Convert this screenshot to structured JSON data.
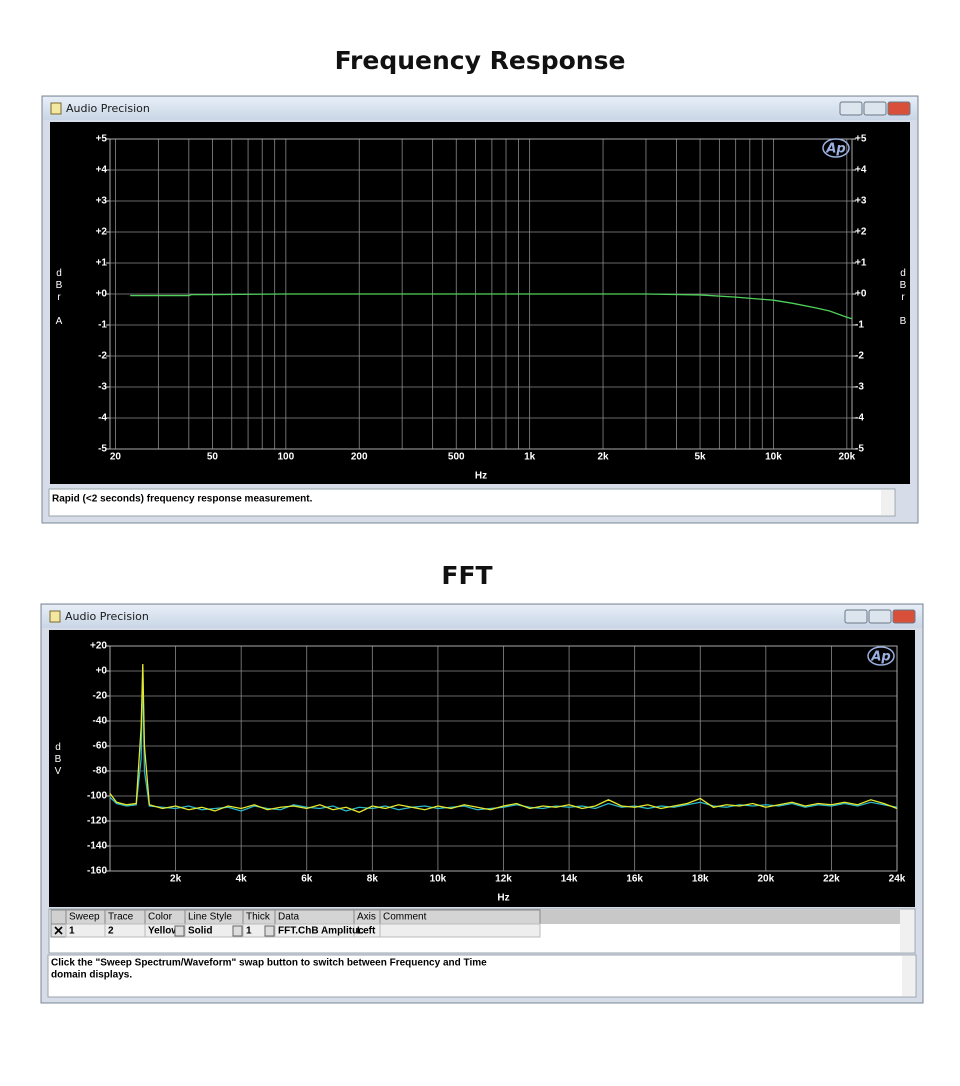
{
  "headings": [
    "Frequency Response",
    "FFT"
  ],
  "windows": [
    {
      "title": "Audio Precision",
      "status": "Rapid (<2 seconds) frequency response measurement."
    },
    {
      "title": "Audio Precision",
      "status": [
        "Click the \"Sweep Spectrum/Waveform\" swap button to switch between Frequency and Time",
        "domain displays."
      ],
      "table": {
        "columns": [
          "Sweep",
          "Trace",
          "Color",
          "Line Style",
          "Thick",
          "Data",
          "Axis",
          "Comment"
        ],
        "rows": [
          [
            "1",
            "2",
            "Yellow",
            "Solid",
            "1",
            "FFT.ChB Amplituc",
            "Left"
          ]
        ]
      }
    }
  ],
  "chart_data": [
    {
      "type": "line",
      "logo": "Ap",
      "xscale": "log",
      "grid": true,
      "xlabel": "Hz",
      "ylabel": "dBr A",
      "y2label": "dBr B",
      "xlim": [
        19,
        21000
      ],
      "xticks": [
        20,
        50,
        100,
        200,
        500,
        {
          "value": 1000,
          "label": "1k"
        },
        {
          "value": 2000,
          "label": "2k"
        },
        {
          "value": 5000,
          "label": "5k"
        },
        {
          "value": 10000,
          "label": "10k"
        },
        {
          "value": 20000,
          "label": "20k"
        }
      ],
      "xminorticks": [
        30,
        40,
        60,
        70,
        80,
        90,
        300,
        400,
        600,
        700,
        800,
        900,
        3000,
        4000,
        6000,
        7000,
        8000,
        9000
      ],
      "ylim": [
        -5,
        5
      ],
      "yticks": [
        {
          "value": 5,
          "label": "+5"
        },
        {
          "value": 4,
          "label": "+4"
        },
        {
          "value": 3,
          "label": "+3"
        },
        {
          "value": 2,
          "label": "+2"
        },
        {
          "value": 1,
          "label": "+1"
        },
        {
          "value": 0,
          "label": "+0"
        },
        -1,
        -2,
        -3,
        -4,
        -5
      ],
      "y2lim": [
        -5,
        5
      ],
      "y2ticks": [
        {
          "value": 5,
          "label": "+5"
        },
        {
          "value": 4,
          "label": "+4"
        },
        {
          "value": 3,
          "label": "+3"
        },
        {
          "value": 2,
          "label": "+2"
        },
        {
          "value": 1,
          "label": "+1"
        },
        {
          "value": 0,
          "label": "+0"
        },
        -1,
        -2,
        -3,
        -4,
        -5
      ],
      "x": [
        23,
        30,
        40,
        41,
        50,
        100,
        200,
        500,
        1000,
        2000,
        3000,
        5000,
        7000,
        10000,
        12000,
        15000,
        17000,
        20000,
        21000
      ],
      "series": [
        {
          "color": "#4fd05a",
          "values": [
            -0.05,
            -0.05,
            -0.05,
            -0.02,
            -0.02,
            0,
            0,
            0,
            0,
            0,
            0,
            -0.03,
            -0.1,
            -0.2,
            -0.3,
            -0.45,
            -0.55,
            -0.75,
            -0.8
          ]
        }
      ]
    },
    {
      "type": "line",
      "logo": "Ap",
      "grid": true,
      "xlabel": "Hz",
      "ylabel": "dBV",
      "xlim": [
        0,
        24000
      ],
      "xticks": [
        {
          "value": 2000,
          "label": "2k"
        },
        {
          "value": 4000,
          "label": "4k"
        },
        {
          "value": 6000,
          "label": "6k"
        },
        {
          "value": 8000,
          "label": "8k"
        },
        {
          "value": 10000,
          "label": "10k"
        },
        {
          "value": 12000,
          "label": "12k"
        },
        {
          "value": 14000,
          "label": "14k"
        },
        {
          "value": 16000,
          "label": "16k"
        },
        {
          "value": 18000,
          "label": "18k"
        },
        {
          "value": 20000,
          "label": "20k"
        },
        {
          "value": 22000,
          "label": "22k"
        },
        {
          "value": 24000,
          "label": "24k"
        }
      ],
      "ylim": [
        -160,
        20
      ],
      "yticks": [
        {
          "value": 20,
          "label": "+20"
        },
        {
          "value": 0,
          "label": "+0"
        },
        -20,
        -40,
        -60,
        -80,
        -100,
        -120,
        -140,
        -160
      ],
      "x": [
        0,
        200,
        500,
        800,
        950,
        1000,
        1050,
        1200,
        1600,
        2000,
        2400,
        2800,
        3200,
        3600,
        4000,
        4400,
        4800,
        5200,
        5600,
        6000,
        6400,
        6800,
        7200,
        7600,
        8000,
        8400,
        8800,
        9200,
        9600,
        10000,
        10400,
        10800,
        11200,
        11600,
        12000,
        12400,
        12800,
        13200,
        13600,
        14000,
        14400,
        14800,
        15200,
        15600,
        16000,
        16400,
        16800,
        17200,
        17600,
        18000,
        18400,
        18800,
        19200,
        19600,
        20000,
        20400,
        20800,
        21200,
        21600,
        22000,
        22400,
        22800,
        23200,
        23600,
        24000
      ],
      "series": [
        {
          "color": "#2bb8c9",
          "values": [
            -101,
            -106,
            -108,
            -107,
            -70,
            3,
            -80,
            -108,
            -109,
            -110,
            -108,
            -111,
            -110,
            -109,
            -112,
            -108,
            -110,
            -111,
            -107,
            -109,
            -110,
            -108,
            -112,
            -109,
            -110,
            -108,
            -111,
            -109,
            -108,
            -110,
            -109,
            -108,
            -111,
            -110,
            -109,
            -107,
            -109,
            -110,
            -108,
            -109,
            -108,
            -110,
            -106,
            -109,
            -108,
            -110,
            -108,
            -109,
            -107,
            -105,
            -108,
            -109,
            -107,
            -108,
            -107,
            -108,
            -106,
            -109,
            -107,
            -108,
            -106,
            -108,
            -105,
            -107,
            -109
          ]
        },
        {
          "color": "#e6e82c",
          "values": [
            -98,
            -105,
            -107,
            -106,
            -45,
            5.6,
            -60,
            -107,
            -110,
            -108,
            -111,
            -109,
            -112,
            -108,
            -110,
            -107,
            -111,
            -109,
            -108,
            -110,
            -107,
            -111,
            -109,
            -113,
            -108,
            -110,
            -107,
            -109,
            -111,
            -108,
            -110,
            -107,
            -109,
            -111,
            -108,
            -106,
            -110,
            -108,
            -109,
            -107,
            -110,
            -108,
            -103,
            -108,
            -109,
            -107,
            -110,
            -108,
            -106,
            -102,
            -109,
            -107,
            -108,
            -106,
            -109,
            -107,
            -105,
            -108,
            -106,
            -107,
            -105,
            -107,
            -103,
            -106,
            -110
          ]
        }
      ]
    }
  ]
}
